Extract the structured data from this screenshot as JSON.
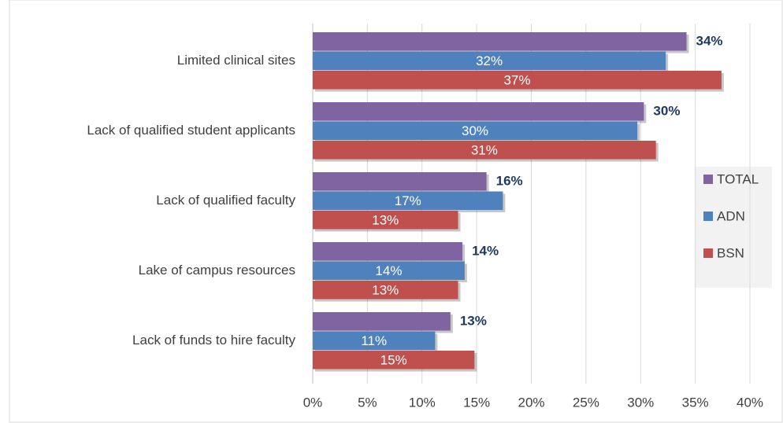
{
  "chart_data": {
    "type": "bar",
    "orientation": "horizontal",
    "categories": [
      "Limited clinical sites",
      "Lack of qualified student applicants",
      "Lack of qualified faculty",
      "Lake of campus resources",
      "Lack of funds to hire faculty"
    ],
    "series": [
      {
        "name": "TOTAL",
        "color": "#8064a2",
        "values": [
          34.2,
          30.3,
          15.9,
          13.7,
          12.6
        ],
        "value_labels": [
          "34%",
          "30%",
          "16%",
          "14%",
          "13%"
        ]
      },
      {
        "name": "ADN",
        "color": "#4f81bd",
        "values": [
          32.3,
          29.7,
          17.4,
          13.9,
          11.2
        ],
        "value_labels": [
          "32%",
          "30%",
          "17%",
          "14%",
          "11%"
        ]
      },
      {
        "name": "BSN",
        "color": "#c0504d",
        "values": [
          37.4,
          31.4,
          13.3,
          13.3,
          14.8
        ],
        "value_labels": [
          "37%",
          "31%",
          "13%",
          "13%",
          "15%"
        ]
      }
    ],
    "xlim": [
      0,
      40
    ],
    "xticks": [
      {
        "value": 0,
        "label": "0%"
      },
      {
        "value": 5,
        "label": "5%"
      },
      {
        "value": 10,
        "label": "10%"
      },
      {
        "value": 15,
        "label": "15%"
      },
      {
        "value": 20,
        "label": "20%"
      },
      {
        "value": 25,
        "label": "25%"
      },
      {
        "value": 30,
        "label": "30%"
      },
      {
        "value": 35,
        "label": "35%"
      },
      {
        "value": 40,
        "label": "40%"
      }
    ],
    "grid": true,
    "legend": "right"
  }
}
